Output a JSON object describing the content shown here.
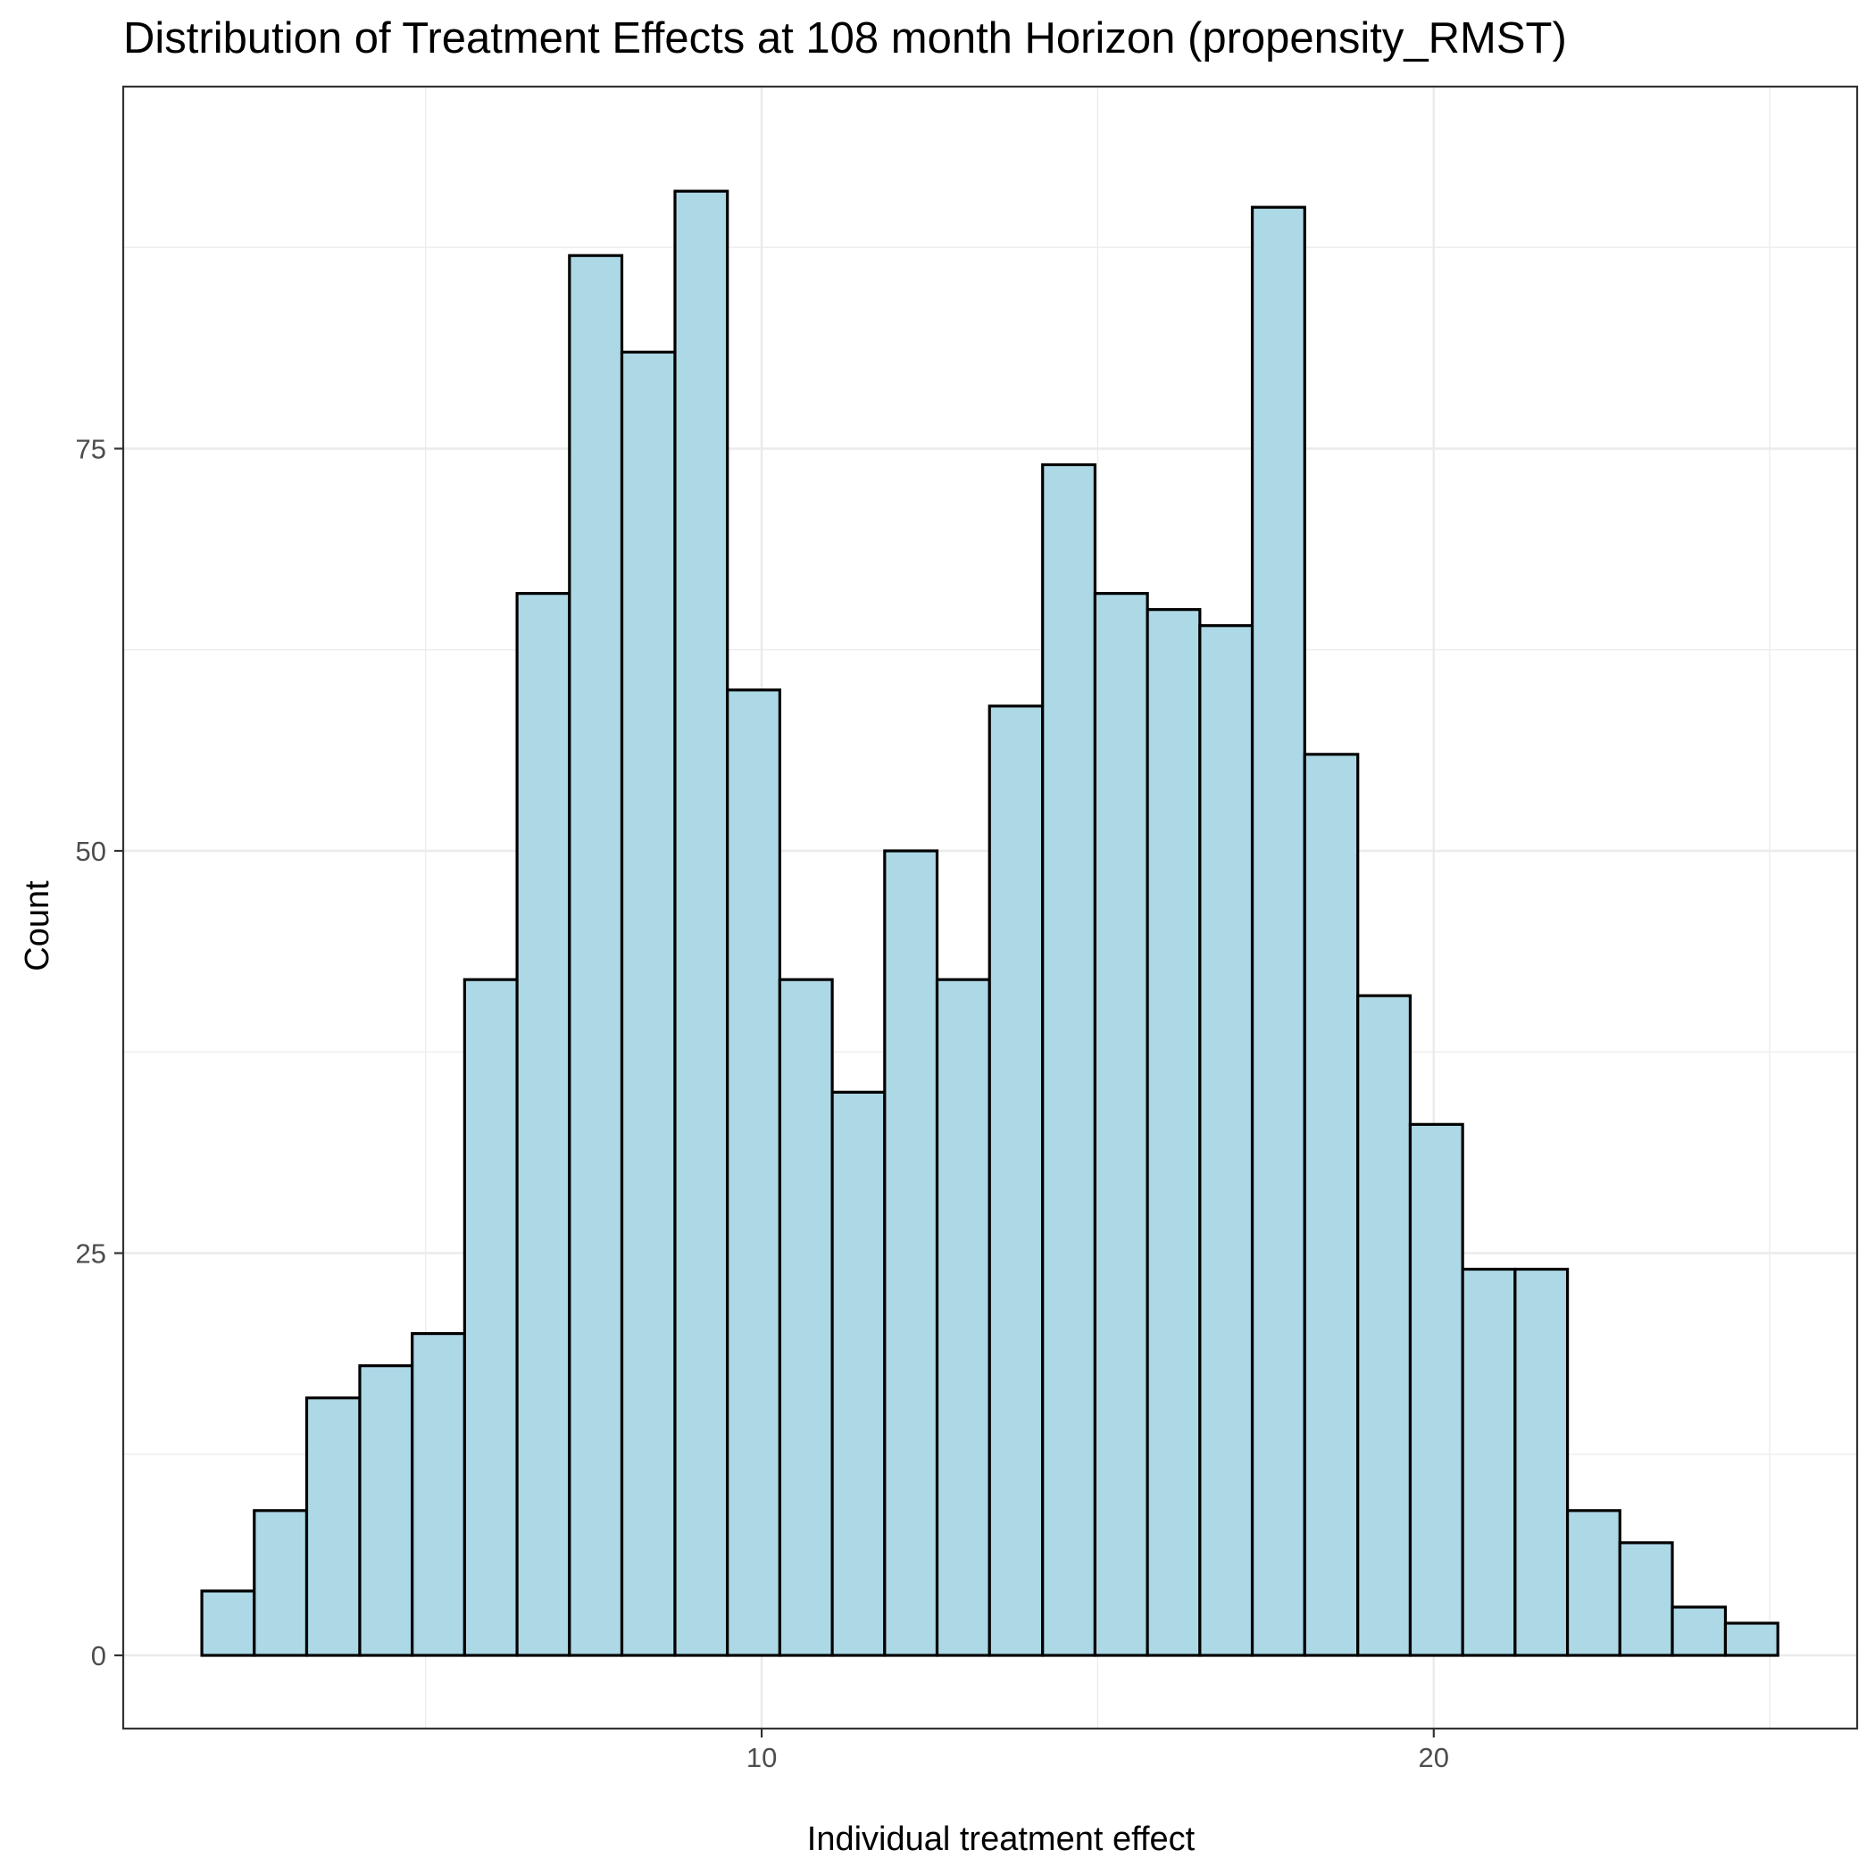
{
  "chart_data": {
    "type": "bar",
    "subtype": "histogram",
    "title": "Distribution of Treatment Effects at 108 month Horizon (propensity_RMST)",
    "xlabel": "Individual treatment effect",
    "ylabel": "Count",
    "bin_width": 0.78,
    "bins": [
      {
        "x0": 1.67,
        "x1": 2.45,
        "count": 4
      },
      {
        "x0": 2.45,
        "x1": 3.23,
        "count": 9
      },
      {
        "x0": 3.23,
        "x1": 4.02,
        "count": 16
      },
      {
        "x0": 4.02,
        "x1": 4.8,
        "count": 18
      },
      {
        "x0": 4.8,
        "x1": 5.58,
        "count": 20
      },
      {
        "x0": 5.58,
        "x1": 6.36,
        "count": 42
      },
      {
        "x0": 6.36,
        "x1": 7.14,
        "count": 66
      },
      {
        "x0": 7.14,
        "x1": 7.92,
        "count": 87
      },
      {
        "x0": 7.92,
        "x1": 8.71,
        "count": 81
      },
      {
        "x0": 8.71,
        "x1": 9.49,
        "count": 91
      },
      {
        "x0": 9.49,
        "x1": 10.27,
        "count": 60
      },
      {
        "x0": 10.27,
        "x1": 11.05,
        "count": 42
      },
      {
        "x0": 11.05,
        "x1": 11.83,
        "count": 35
      },
      {
        "x0": 11.83,
        "x1": 12.61,
        "count": 50
      },
      {
        "x0": 12.61,
        "x1": 13.39,
        "count": 42
      },
      {
        "x0": 13.39,
        "x1": 14.18,
        "count": 59
      },
      {
        "x0": 14.18,
        "x1": 14.96,
        "count": 74
      },
      {
        "x0": 14.96,
        "x1": 15.74,
        "count": 66
      },
      {
        "x0": 15.74,
        "x1": 16.52,
        "count": 65
      },
      {
        "x0": 16.52,
        "x1": 17.3,
        "count": 64
      },
      {
        "x0": 17.3,
        "x1": 18.08,
        "count": 90
      },
      {
        "x0": 18.08,
        "x1": 18.87,
        "count": 56
      },
      {
        "x0": 18.87,
        "x1": 19.65,
        "count": 41
      },
      {
        "x0": 19.65,
        "x1": 20.43,
        "count": 33
      },
      {
        "x0": 20.43,
        "x1": 21.21,
        "count": 24
      },
      {
        "x0": 21.21,
        "x1": 21.99,
        "count": 24
      },
      {
        "x0": 21.99,
        "x1": 22.77,
        "count": 9
      },
      {
        "x0": 22.77,
        "x1": 23.55,
        "count": 7
      },
      {
        "x0": 23.55,
        "x1": 24.34,
        "count": 3
      },
      {
        "x0": 24.34,
        "x1": 25.12,
        "count": 2
      }
    ],
    "xlim": [
      0.5,
      26.3
    ],
    "ylim": [
      -4.55,
      97.5
    ],
    "x_ticks": [
      10,
      20
    ],
    "x_tick_labels": [
      "10",
      "20"
    ],
    "x_minor_ticks": [
      5,
      15,
      25
    ],
    "y_ticks": [
      0,
      25,
      50,
      75
    ],
    "y_tick_labels": [
      "0",
      "25",
      "50",
      "75"
    ],
    "y_minor_ticks": [
      12.5,
      37.5,
      62.5,
      87.5
    ],
    "grid": true,
    "legend": "none",
    "colors": {
      "bar_fill": "#add8e6",
      "bar_outline": "#000000",
      "grid": "#ebebeb",
      "panel_border": "#333333",
      "tick_label": "#4d4d4d",
      "background": "#ffffff"
    }
  }
}
